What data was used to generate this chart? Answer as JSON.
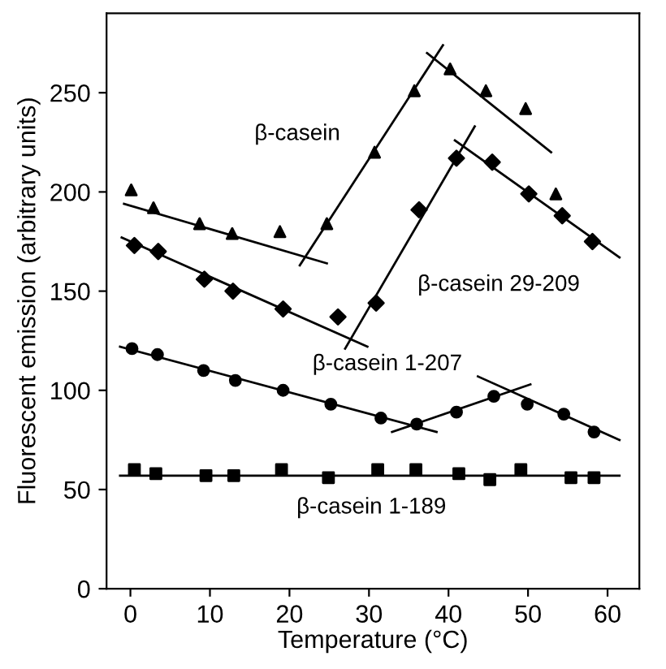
{
  "chart_data": {
    "type": "scatter",
    "xlabel": "Temperature (°C)",
    "ylabel": "Fluorescent emission (arbitrary units)",
    "xlim": [
      -3,
      64
    ],
    "ylim": [
      0,
      290
    ],
    "xticks": [
      0,
      10,
      20,
      30,
      40,
      50,
      60
    ],
    "yticks": [
      0,
      50,
      100,
      150,
      200,
      250
    ],
    "grid": false,
    "legend": false,
    "series": [
      {
        "name": "β-casein",
        "marker": "triangle",
        "color": "#000000",
        "x": [
          0.1,
          2.9,
          8.7,
          12.8,
          18.8,
          24.7,
          30.7,
          35.7,
          40.2,
          44.7,
          49.7,
          53.5
        ],
        "values": [
          201,
          192,
          184,
          179,
          180,
          184,
          220,
          251,
          262,
          251,
          242,
          199
        ]
      },
      {
        "name": "β-casein 29-209",
        "marker": "diamond",
        "color": "#000000",
        "x": [
          0.5,
          3.5,
          9.3,
          12.9,
          19.2,
          26.1,
          30.9,
          36.3,
          41,
          45.5,
          50.1,
          54.3,
          58.1
        ],
        "values": [
          173,
          170,
          156,
          150,
          141,
          137,
          144,
          191,
          217,
          215,
          199,
          188,
          175
        ]
      },
      {
        "name": "β-casein 1-207",
        "marker": "circle",
        "color": "#000000",
        "x": [
          0.2,
          3.4,
          9.2,
          13.2,
          19.2,
          25.2,
          31.5,
          36,
          41,
          45.7,
          49.9,
          54.5,
          58.3
        ],
        "values": [
          121,
          118,
          110,
          105,
          100,
          93,
          86,
          83,
          89,
          97,
          93,
          88,
          79
        ]
      },
      {
        "name": "β-casein 1-189",
        "marker": "square",
        "color": "#000000",
        "x": [
          0.5,
          3.2,
          9.5,
          13,
          19,
          24.9,
          31.1,
          35.9,
          41.3,
          45.2,
          49.1,
          55.4,
          58.3
        ],
        "values": [
          60,
          58,
          57,
          57,
          60,
          56,
          60,
          60,
          58,
          55,
          60,
          56,
          56
        ]
      },
      {
        "type": "line",
        "marker": "none",
        "color": "#000000",
        "x": [
          -0.8,
          24.7
        ],
        "values": [
          194,
          164
        ]
      },
      {
        "type": "line",
        "marker": "none",
        "color": "#000000",
        "x": [
          21.3,
          39.3
        ],
        "values": [
          163,
          274
        ]
      },
      {
        "type": "line",
        "marker": "none",
        "color": "#000000",
        "x": [
          37.3,
          52.9
        ],
        "values": [
          270,
          220
        ]
      },
      {
        "type": "line",
        "marker": "none",
        "color": "#000000",
        "x": [
          -1.1,
          29.8
        ],
        "values": [
          177,
          122
        ]
      },
      {
        "type": "line",
        "marker": "none",
        "color": "#000000",
        "x": [
          27,
          43.3
        ],
        "values": [
          121,
          233
        ]
      },
      {
        "type": "line",
        "marker": "none",
        "color": "#000000",
        "x": [
          40.8,
          61.5
        ],
        "values": [
          226,
          167
        ]
      },
      {
        "type": "line",
        "marker": "none",
        "color": "#000000",
        "x": [
          -1.3,
          38.5
        ],
        "values": [
          122,
          79
        ]
      },
      {
        "type": "line",
        "marker": "none",
        "color": "#000000",
        "x": [
          32.9,
          50.3
        ],
        "values": [
          79,
          103
        ]
      },
      {
        "type": "line",
        "marker": "none",
        "color": "#000000",
        "x": [
          43.7,
          61.5
        ],
        "values": [
          107,
          75
        ]
      },
      {
        "type": "line",
        "marker": "none",
        "color": "#000000",
        "x": [
          -1.3,
          61.5
        ],
        "values": [
          57,
          57
        ]
      }
    ]
  }
}
